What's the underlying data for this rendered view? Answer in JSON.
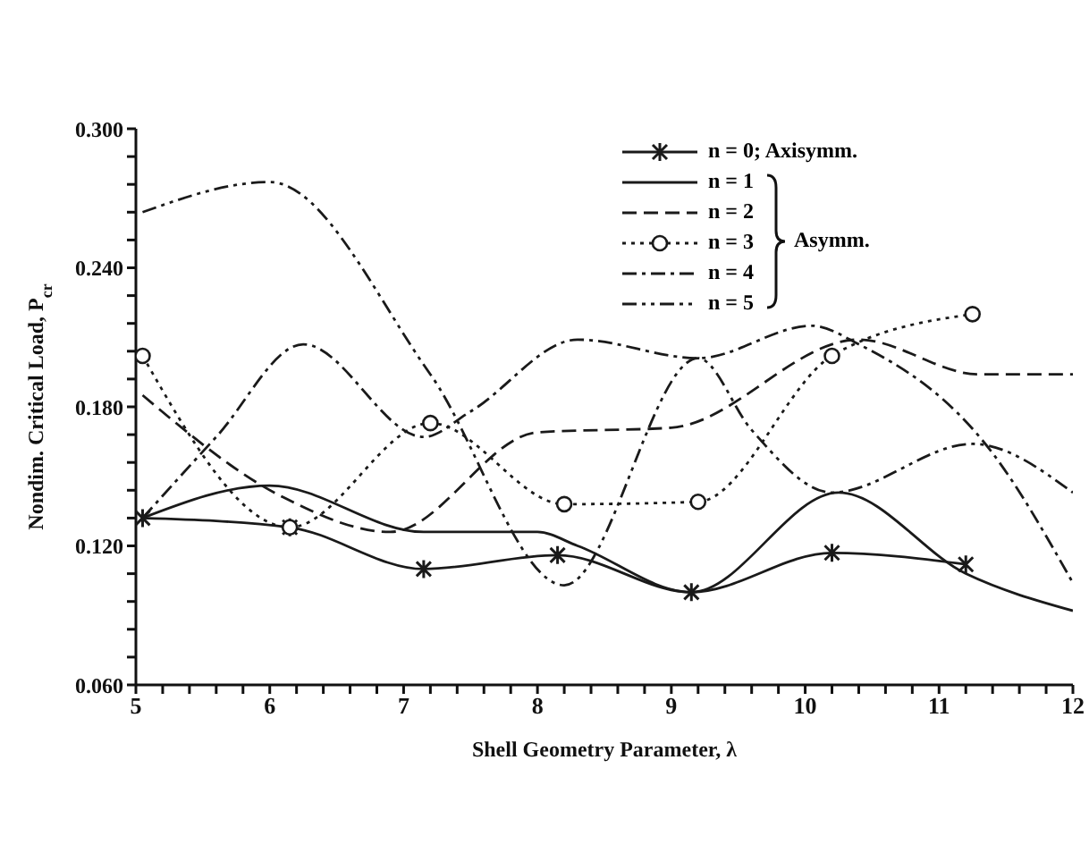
{
  "chart_data": {
    "type": "line",
    "xlabel": "Shell Geometry Parameter, λ",
    "ylabel": "Nondim. Critical Load, P$_{cr}$",
    "xlim": [
      5,
      12
    ],
    "ylim": [
      0.06,
      0.3
    ],
    "xticks": [
      5,
      {
        "value": 5.2,
        "label": null
      },
      {
        "value": 5.4,
        "label": null
      },
      {
        "value": 5.6,
        "label": null
      },
      {
        "value": 5.8,
        "label": null
      },
      6,
      {
        "value": 6.2,
        "label": null
      },
      {
        "value": 6.4,
        "label": null
      },
      {
        "value": 6.6,
        "label": null
      },
      {
        "value": 6.8,
        "label": null
      },
      7,
      {
        "value": 7.2,
        "label": null
      },
      {
        "value": 7.4,
        "label": null
      },
      {
        "value": 7.6,
        "label": null
      },
      {
        "value": 7.8,
        "label": null
      },
      8,
      {
        "value": 8.2,
        "label": null
      },
      {
        "value": 8.4,
        "label": null
      },
      {
        "value": 8.6,
        "label": null
      },
      {
        "value": 8.8,
        "label": null
      },
      9,
      {
        "value": 9.2,
        "label": null
      },
      {
        "value": 9.4,
        "label": null
      },
      {
        "value": 9.6,
        "label": null
      },
      {
        "value": 9.8,
        "label": null
      },
      10,
      {
        "value": 10.2,
        "label": null
      },
      {
        "value": 10.4,
        "label": null
      },
      {
        "value": 10.6,
        "label": null
      },
      {
        "value": 10.8,
        "label": null
      },
      11,
      {
        "value": 11.2,
        "label": null
      },
      {
        "value": 11.4,
        "label": null
      },
      {
        "value": 11.6,
        "label": null
      },
      {
        "value": 11.8,
        "label": null
      },
      12
    ],
    "yticks": [
      {
        "value": 0.06,
        "label": "0.060"
      },
      {
        "value": 0.072,
        "label": null
      },
      {
        "value": 0.084,
        "label": null
      },
      {
        "value": 0.096,
        "label": null
      },
      {
        "value": 0.108,
        "label": null
      },
      {
        "value": 0.12,
        "label": "0.120"
      },
      {
        "value": 0.132,
        "label": null
      },
      {
        "value": 0.144,
        "label": null
      },
      {
        "value": 0.156,
        "label": null
      },
      {
        "value": 0.168,
        "label": null
      },
      {
        "value": 0.18,
        "label": "0.180"
      },
      {
        "value": 0.192,
        "label": null
      },
      {
        "value": 0.204,
        "label": null
      },
      {
        "value": 0.216,
        "label": null
      },
      {
        "value": 0.228,
        "label": null
      },
      {
        "value": 0.24,
        "label": "0.240"
      },
      {
        "value": 0.252,
        "label": null
      },
      {
        "value": 0.264,
        "label": null
      },
      {
        "value": 0.276,
        "label": null
      },
      {
        "value": 0.288,
        "label": null
      },
      {
        "value": 0.3,
        "label": "0.300"
      }
    ],
    "legend": "top right",
    "annotations": [
      "Asymm."
    ],
    "series": [
      {
        "name": "n = 0; Axisymm.",
        "color": "#1a1a1a",
        "line_style": "solid",
        "marker": "cross",
        "x": [
          5.05,
          6.15,
          7.15,
          8.15,
          9.15,
          10.2,
          11.2
        ],
        "values": [
          0.132,
          0.128,
          0.11,
          0.116,
          0.1,
          0.117,
          0.112
        ]
      },
      {
        "name": "n = 1",
        "color": "#1a1a1a",
        "line_style": "solid",
        "marker": "none",
        "x": [
          5.05,
          6,
          7.15,
          8,
          8.3,
          9.15,
          10.25,
          11.2,
          12
        ],
        "values": [
          0.132,
          0.146,
          0.126,
          0.126,
          0.12,
          0.1,
          0.143,
          0.108,
          0.092
        ]
      },
      {
        "name": "n = 2",
        "color": "#1a1a1a",
        "line_style": "dashed",
        "marker": "none",
        "x": [
          5.05,
          6.1,
          6.9,
          8,
          9,
          10.4,
          11.3,
          12
        ],
        "values": [
          0.185,
          0.141,
          0.126,
          0.169,
          0.171,
          0.209,
          0.194,
          0.194
        ]
      },
      {
        "name": "n = 3",
        "color": "#1a1a1a",
        "line_style": "dotted",
        "marker": "circle",
        "x": [
          5.05,
          6.15,
          7.2,
          8.2,
          9.2,
          10.2,
          11.25
        ],
        "values": [
          0.202,
          0.128,
          0.173,
          0.138,
          0.139,
          0.202,
          0.22
        ]
      },
      {
        "name": "n = 4",
        "color": "#1a1a1a",
        "line_style": "dashdot",
        "marker": "none",
        "x": [
          5.05,
          5.6,
          6.25,
          7.15,
          7.5,
          8.3,
          9.2,
          10.05,
          10.4,
          11.4,
          12
        ],
        "values": [
          0.132,
          0.167,
          0.207,
          0.167,
          0.178,
          0.209,
          0.201,
          0.215,
          0.207,
          0.16,
          0.104
        ]
      },
      {
        "name": "n = 5",
        "color": "#1a1a1a",
        "line_style": "dashdotdot",
        "marker": "none",
        "x": [
          5.05,
          6,
          7.2,
          8.2,
          9.2,
          9.6,
          10.2,
          11.25,
          12
        ],
        "values": [
          0.264,
          0.277,
          0.194,
          0.103,
          0.201,
          0.17,
          0.143,
          0.164,
          0.143
        ]
      }
    ]
  }
}
